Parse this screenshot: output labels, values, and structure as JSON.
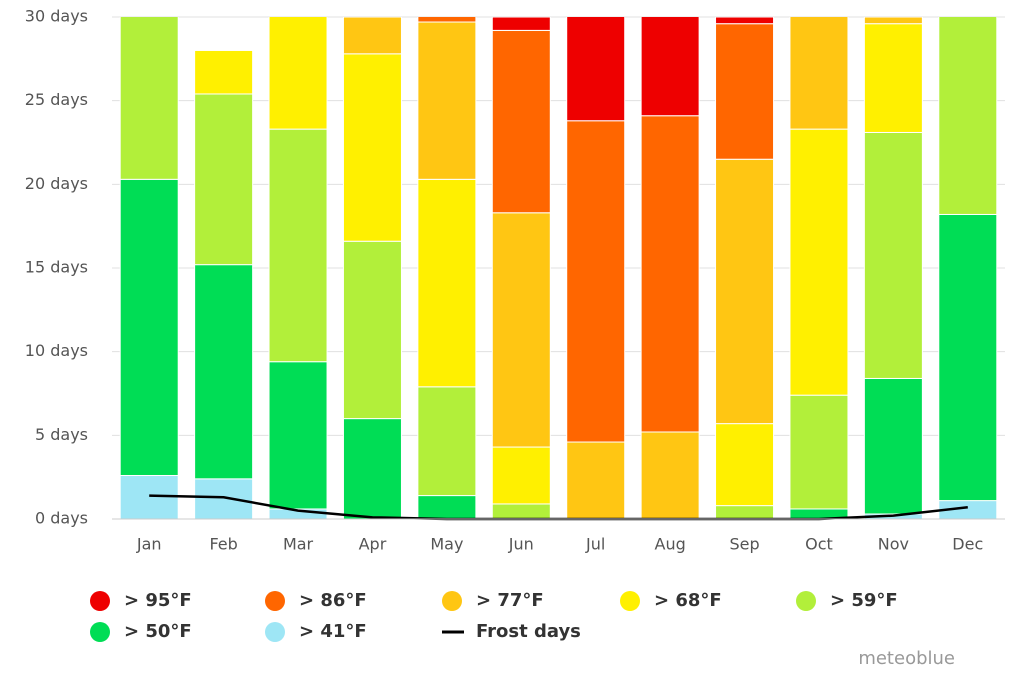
{
  "chart_data": {
    "type": "bar",
    "stacked": true,
    "categories": [
      "Jan",
      "Feb",
      "Mar",
      "Apr",
      "May",
      "Jun",
      "Jul",
      "Aug",
      "Sep",
      "Oct",
      "Nov",
      "Dec"
    ],
    "ylim": [
      0,
      30
    ],
    "yticks": [
      {
        "value": 0,
        "label": "0 days"
      },
      {
        "value": 5,
        "label": "5 days"
      },
      {
        "value": 10,
        "label": "10 days"
      },
      {
        "value": 15,
        "label": "15 days"
      },
      {
        "value": 20,
        "label": "20 days"
      },
      {
        "value": 25,
        "label": "25 days"
      },
      {
        "value": 30,
        "label": "30 days"
      }
    ],
    "grid": true,
    "series": [
      {
        "name": "> 95°F",
        "color": "#ee0000",
        "values": [
          0,
          0,
          0,
          0,
          0,
          0.8,
          7.2,
          6.9,
          0.4,
          0,
          0,
          0
        ]
      },
      {
        "name": "> 86°F",
        "color": "#ff6600",
        "values": [
          0,
          0,
          0,
          0,
          1.3,
          10.9,
          19.2,
          18.9,
          8.1,
          0,
          0,
          0
        ]
      },
      {
        "name": "> 77°F",
        "color": "#ffc613",
        "values": [
          0,
          0,
          0,
          2.2,
          9.4,
          14.0,
          4.6,
          5.2,
          15.8,
          7.7,
          0.4,
          0
        ]
      },
      {
        "name": "> 68°F",
        "color": "#fff000",
        "values": [
          0,
          2.6,
          7.7,
          11.2,
          12.4,
          3.4,
          0,
          0,
          4.9,
          15.9,
          6.5,
          0
        ]
      },
      {
        "name": "> 59°F",
        "color": "#b2ef3a",
        "values": [
          10.7,
          10.2,
          13.9,
          10.6,
          6.5,
          0.9,
          0,
          0,
          0.8,
          6.8,
          14.7,
          12.8
        ]
      },
      {
        "name": "> 50°F",
        "color": "#00dd55",
        "values": [
          17.7,
          12.8,
          8.8,
          6.0,
          1.4,
          0,
          0,
          0,
          0,
          0.6,
          8.1,
          17.1
        ]
      },
      {
        "name": "> 41°F",
        "color": "#9ee6f5",
        "values": [
          2.6,
          2.4,
          0.6,
          0,
          0,
          0,
          0,
          0,
          0,
          0,
          0.3,
          1.1
        ]
      },
      {
        "name": "Frost days",
        "type": "line",
        "color": "#000000",
        "values": [
          1.4,
          1.3,
          0.5,
          0.1,
          0,
          0,
          0,
          0,
          0,
          0,
          0.2,
          0.7
        ]
      }
    ],
    "watermark": "meteoblue"
  }
}
